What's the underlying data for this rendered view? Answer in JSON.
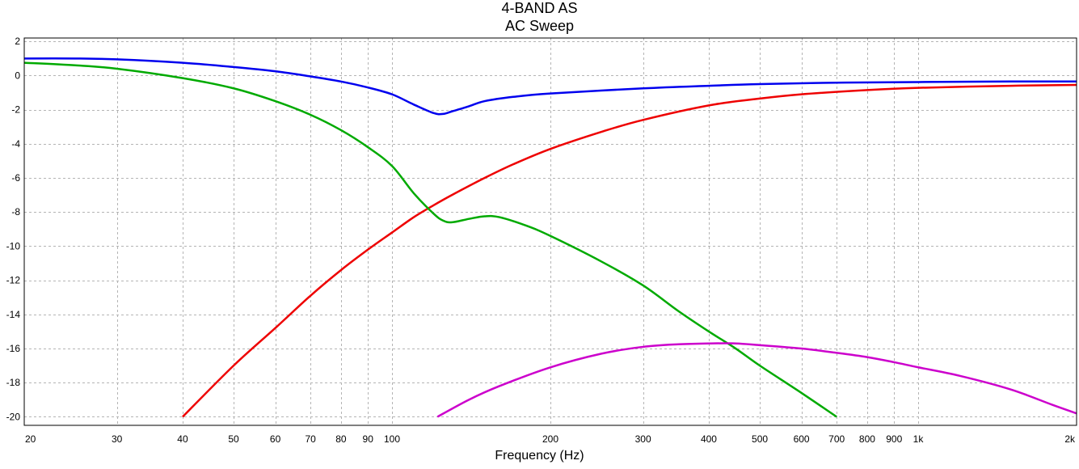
{
  "chart_data": {
    "type": "line",
    "title": "4-BAND AS",
    "subtitle": "AC Sweep",
    "xlabel": "Frequency (Hz)",
    "ylabel": "",
    "xscale": "log",
    "xlim": [
      20,
      2000
    ],
    "ylim": [
      -20.5,
      2.2
    ],
    "grid": true,
    "x_ticks": [
      {
        "value": 20,
        "label": "20"
      },
      {
        "value": 30,
        "label": "30"
      },
      {
        "value": 40,
        "label": "40"
      },
      {
        "value": 50,
        "label": "50"
      },
      {
        "value": 60,
        "label": "60"
      },
      {
        "value": 70,
        "label": "70"
      },
      {
        "value": 80,
        "label": "80"
      },
      {
        "value": 90,
        "label": "90"
      },
      {
        "value": 100,
        "label": "100"
      },
      {
        "value": 200,
        "label": "200"
      },
      {
        "value": 300,
        "label": "300"
      },
      {
        "value": 400,
        "label": "400"
      },
      {
        "value": 500,
        "label": "500"
      },
      {
        "value": 600,
        "label": "600"
      },
      {
        "value": 700,
        "label": "700"
      },
      {
        "value": 800,
        "label": "800"
      },
      {
        "value": 900,
        "label": "900"
      },
      {
        "value": 1000,
        "label": "1k"
      },
      {
        "value": 2000,
        "label": "2k"
      }
    ],
    "y_ticks": [
      {
        "value": 2,
        "label": "2"
      },
      {
        "value": 0,
        "label": "0"
      },
      {
        "value": -2,
        "label": "-2"
      },
      {
        "value": -4,
        "label": "-4"
      },
      {
        "value": -6,
        "label": "-6"
      },
      {
        "value": -8,
        "label": "-8"
      },
      {
        "value": -10,
        "label": "-10"
      },
      {
        "value": -12,
        "label": "-12"
      },
      {
        "value": -14,
        "label": "-14"
      },
      {
        "value": -16,
        "label": "-16"
      },
      {
        "value": -18,
        "label": "-18"
      },
      {
        "value": -20,
        "label": "-20"
      }
    ],
    "series": [
      {
        "color": "#0000ee",
        "points": [
          [
            20,
            1.0
          ],
          [
            25,
            1.0
          ],
          [
            30,
            0.95
          ],
          [
            40,
            0.75
          ],
          [
            50,
            0.5
          ],
          [
            60,
            0.25
          ],
          [
            70,
            -0.05
          ],
          [
            80,
            -0.35
          ],
          [
            90,
            -0.7
          ],
          [
            100,
            -1.1
          ],
          [
            110,
            -1.7
          ],
          [
            120,
            -2.2
          ],
          [
            125,
            -2.25
          ],
          [
            130,
            -2.1
          ],
          [
            140,
            -1.8
          ],
          [
            150,
            -1.5
          ],
          [
            170,
            -1.25
          ],
          [
            200,
            -1.05
          ],
          [
            300,
            -0.75
          ],
          [
            400,
            -0.6
          ],
          [
            500,
            -0.5
          ],
          [
            700,
            -0.42
          ],
          [
            1000,
            -0.38
          ],
          [
            1500,
            -0.35
          ],
          [
            2000,
            -0.35
          ]
        ]
      },
      {
        "color": "#ee0000",
        "points": [
          [
            40,
            -20.0
          ],
          [
            50,
            -17.0
          ],
          [
            60,
            -14.8
          ],
          [
            70,
            -12.9
          ],
          [
            80,
            -11.4
          ],
          [
            90,
            -10.2
          ],
          [
            100,
            -9.2
          ],
          [
            110,
            -8.3
          ],
          [
            120,
            -7.6
          ],
          [
            130,
            -7.0
          ],
          [
            150,
            -6.0
          ],
          [
            170,
            -5.2
          ],
          [
            200,
            -4.3
          ],
          [
            250,
            -3.3
          ],
          [
            300,
            -2.6
          ],
          [
            400,
            -1.75
          ],
          [
            500,
            -1.35
          ],
          [
            600,
            -1.1
          ],
          [
            800,
            -0.85
          ],
          [
            1000,
            -0.72
          ],
          [
            1500,
            -0.6
          ],
          [
            2000,
            -0.55
          ]
        ]
      },
      {
        "color": "#00aa00",
        "points": [
          [
            20,
            0.75
          ],
          [
            25,
            0.6
          ],
          [
            30,
            0.4
          ],
          [
            40,
            -0.15
          ],
          [
            50,
            -0.75
          ],
          [
            60,
            -1.5
          ],
          [
            70,
            -2.3
          ],
          [
            80,
            -3.2
          ],
          [
            90,
            -4.2
          ],
          [
            100,
            -5.3
          ],
          [
            110,
            -6.9
          ],
          [
            120,
            -8.1
          ],
          [
            125,
            -8.5
          ],
          [
            130,
            -8.6
          ],
          [
            140,
            -8.4
          ],
          [
            150,
            -8.25
          ],
          [
            160,
            -8.3
          ],
          [
            180,
            -8.8
          ],
          [
            200,
            -9.4
          ],
          [
            250,
            -10.9
          ],
          [
            300,
            -12.3
          ],
          [
            350,
            -13.8
          ],
          [
            400,
            -15.0
          ],
          [
            450,
            -16.0
          ],
          [
            500,
            -17.0
          ],
          [
            600,
            -18.6
          ],
          [
            700,
            -20.0
          ]
        ]
      },
      {
        "color": "#cc00cc",
        "points": [
          [
            122,
            -20.0
          ],
          [
            140,
            -19.0
          ],
          [
            160,
            -18.2
          ],
          [
            200,
            -17.1
          ],
          [
            250,
            -16.3
          ],
          [
            300,
            -15.9
          ],
          [
            350,
            -15.75
          ],
          [
            400,
            -15.7
          ],
          [
            450,
            -15.7
          ],
          [
            500,
            -15.8
          ],
          [
            600,
            -16.0
          ],
          [
            700,
            -16.25
          ],
          [
            800,
            -16.5
          ],
          [
            900,
            -16.8
          ],
          [
            1000,
            -17.1
          ],
          [
            1200,
            -17.6
          ],
          [
            1500,
            -18.4
          ],
          [
            1800,
            -19.3
          ],
          [
            2000,
            -19.8
          ]
        ]
      }
    ]
  }
}
